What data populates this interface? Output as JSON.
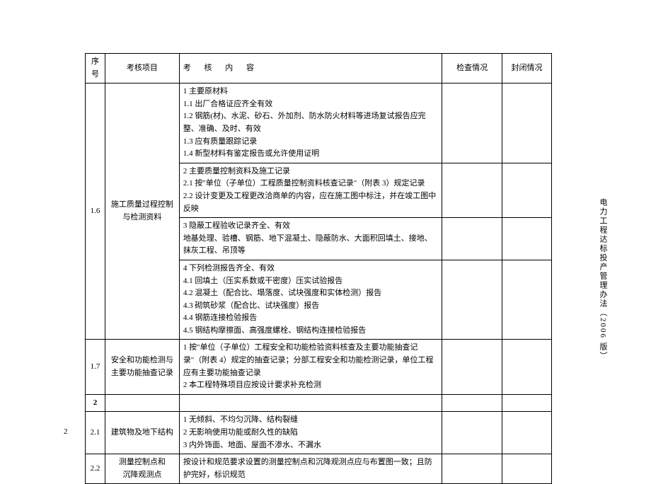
{
  "header": {
    "col1": "序号",
    "col2": "考核项目",
    "col3": "考  核  内  容",
    "col4": "检查情况",
    "col5": "封闭情况"
  },
  "rows": {
    "r16": {
      "seq": "1.6",
      "item": "施工质量过程控制与检测资料",
      "c1": "1  主要原材料\n1.1  出厂合格证应齐全有效\n1.2  钢筋(材)、水泥、砂石、外加剂、防水防火材料等进场复试报告应完整、准确、及时、有效\n1.3  应有质量跟踪记录\n1.4  新型材料有鉴定报告或允许使用证明",
      "c2": "2  主要质量控制资料及施工记录\n2.1  按\"单位（子单位）工程质量控制资料核查记录\"（附表 3）规定记录\n2.2  设计变更及工程更改洽商单的内容，应在施工图中标注，并在竣工图中反映",
      "c3": "3  隐蔽工程验收记录齐全、有效\n   地基处理、验槽、钢筋、地下混凝土、隐蔽防水、大面积回填土、接地、抹灰工程、吊顶等",
      "c4": "4  下列检测报告齐全、有效\n4.1  回填土（压实系数或干密度）压实试验报告\n4.2  混凝土（配合比、塌落度、试块强度和实体检测）报告\n4.3  砌筑砂浆（配合比、试块强度）报告\n4.4  钢筋连接检验报告\n4.5  钢结构摩擦面、高强度螺栓、钢结构连接检验报告"
    },
    "r17": {
      "seq": "1.7",
      "item": "安全和功能检测与主要功能抽查记录",
      "c": "1  按\"单位（子单位）工程安全和功能检验资料核查及主要功能抽查记录\"（附表 4）规定的抽查记录；分部工程安全和功能检测记录，单位工程应有主要功能抽查记录\n2  本工程特殊项目应按设计要求补充检测"
    },
    "r2": {
      "seq": "2"
    },
    "r21": {
      "seq": "2.1",
      "item": "建筑物及地下结构",
      "c": "1  无倾斜、不均匀沉降、结构裂缝\n2  无影响使用功能或耐久性的缺陷\n3  内外饰面、地面、屋面不渗水、不漏水"
    },
    "r22": {
      "seq": "2.2",
      "item": "测量控制点和\n沉降观测点",
      "c": "按设计和规范要求设置的测量控制点和沉降观测点应与布置图一致；且防护完好，标识规范"
    }
  },
  "sideText": "电力工程达标投产管理办法（2006 版）",
  "pageNum": "2"
}
